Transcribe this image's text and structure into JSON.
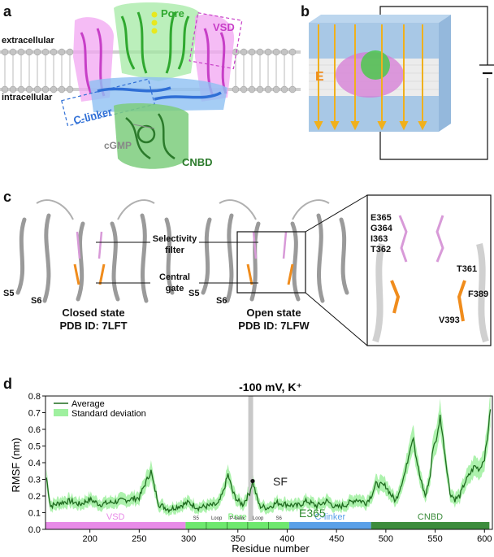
{
  "panel_a": {
    "letter": "a",
    "labels": {
      "pore": "Pore",
      "vsd": "VSD",
      "extracellular": "extracellular",
      "intracellular": "intracellular",
      "clinker": "C-linker",
      "cgmp": "cGMP",
      "cnbd": "CNBD"
    }
  },
  "panel_b": {
    "letter": "b",
    "field_label": "E"
  },
  "panel_c": {
    "letter": "c",
    "selectivity_filter": "Selectivity filter",
    "central_gate": "Central gate",
    "closed": {
      "s5": "S5",
      "s6": "S6",
      "state": "Closed state",
      "pdb": "PDB ID: 7LFT"
    },
    "open": {
      "s5": "S5",
      "s6": "S6",
      "state": "Open state",
      "pdb": "PDB ID: 7LFW"
    },
    "zoom_residues_left": [
      "E365",
      "G364",
      "I363",
      "T362"
    ],
    "zoom_residues_right": [
      "T361",
      "F389",
      "V393"
    ]
  },
  "panel_d": {
    "letter": "d"
  },
  "chart_data": {
    "type": "line",
    "title": "-100 mV, K⁺",
    "xlabel": "Residue number",
    "ylabel": "RMSF (nm)",
    "xlim": [
      155,
      608
    ],
    "ylim": [
      0,
      0.8
    ],
    "xticks": [
      150,
      200,
      250,
      300,
      350,
      400,
      450,
      500,
      550,
      600
    ],
    "yticks": [
      0.0,
      0.1,
      0.2,
      0.3,
      0.4,
      0.5,
      0.6,
      0.7,
      0.8
    ],
    "legend": [
      "Average",
      "Standard deviation"
    ],
    "legend_position": "top-left",
    "sf_label": "SF",
    "sf_x": 363,
    "e365_label": "E365",
    "e365_point": [
      365,
      0.29
    ],
    "series": [
      {
        "name": "Average",
        "x": [
          156,
          160,
          170,
          180,
          190,
          200,
          210,
          220,
          230,
          240,
          250,
          255,
          262,
          265,
          270,
          280,
          290,
          300,
          310,
          320,
          330,
          335,
          340,
          345,
          350,
          355,
          358,
          362,
          365,
          368,
          372,
          380,
          390,
          400,
          410,
          420,
          430,
          440,
          450,
          460,
          470,
          480,
          485,
          490,
          500,
          505,
          510,
          515,
          520,
          525,
          528,
          530,
          535,
          540,
          545,
          548,
          552,
          555,
          560,
          565,
          570,
          575,
          580,
          585,
          590,
          595,
          600,
          603,
          606
        ],
        "y": [
          0.31,
          0.14,
          0.16,
          0.17,
          0.15,
          0.18,
          0.15,
          0.16,
          0.17,
          0.18,
          0.19,
          0.26,
          0.35,
          0.26,
          0.15,
          0.12,
          0.14,
          0.16,
          0.13,
          0.14,
          0.15,
          0.22,
          0.33,
          0.22,
          0.17,
          0.15,
          0.18,
          0.22,
          0.29,
          0.22,
          0.14,
          0.13,
          0.16,
          0.15,
          0.14,
          0.17,
          0.14,
          0.17,
          0.13,
          0.15,
          0.18,
          0.16,
          0.2,
          0.27,
          0.26,
          0.21,
          0.17,
          0.26,
          0.35,
          0.5,
          0.56,
          0.46,
          0.3,
          0.2,
          0.32,
          0.5,
          0.55,
          0.68,
          0.45,
          0.22,
          0.18,
          0.2,
          0.28,
          0.33,
          0.38,
          0.36,
          0.43,
          0.55,
          0.72
        ]
      }
    ],
    "domain_bar": [
      {
        "label": "VSD",
        "start": 155,
        "end": 297,
        "color": "#e88be8"
      },
      {
        "label": "Pore",
        "start": 297,
        "end": 402,
        "color": "#6ee86e"
      },
      {
        "label": "C-linker",
        "start": 402,
        "end": 485,
        "color": "#5aa0e8"
      },
      {
        "label": "CNBD",
        "start": 485,
        "end": 605,
        "color": "#3c8c3c"
      }
    ],
    "pore_sublabels": [
      "S5",
      "Loop",
      "P-helix",
      "Loop",
      "S6"
    ],
    "colors": {
      "average": "#1f6b1f",
      "std": "#9ff09f",
      "sf_line": "#c8c8c8"
    }
  }
}
